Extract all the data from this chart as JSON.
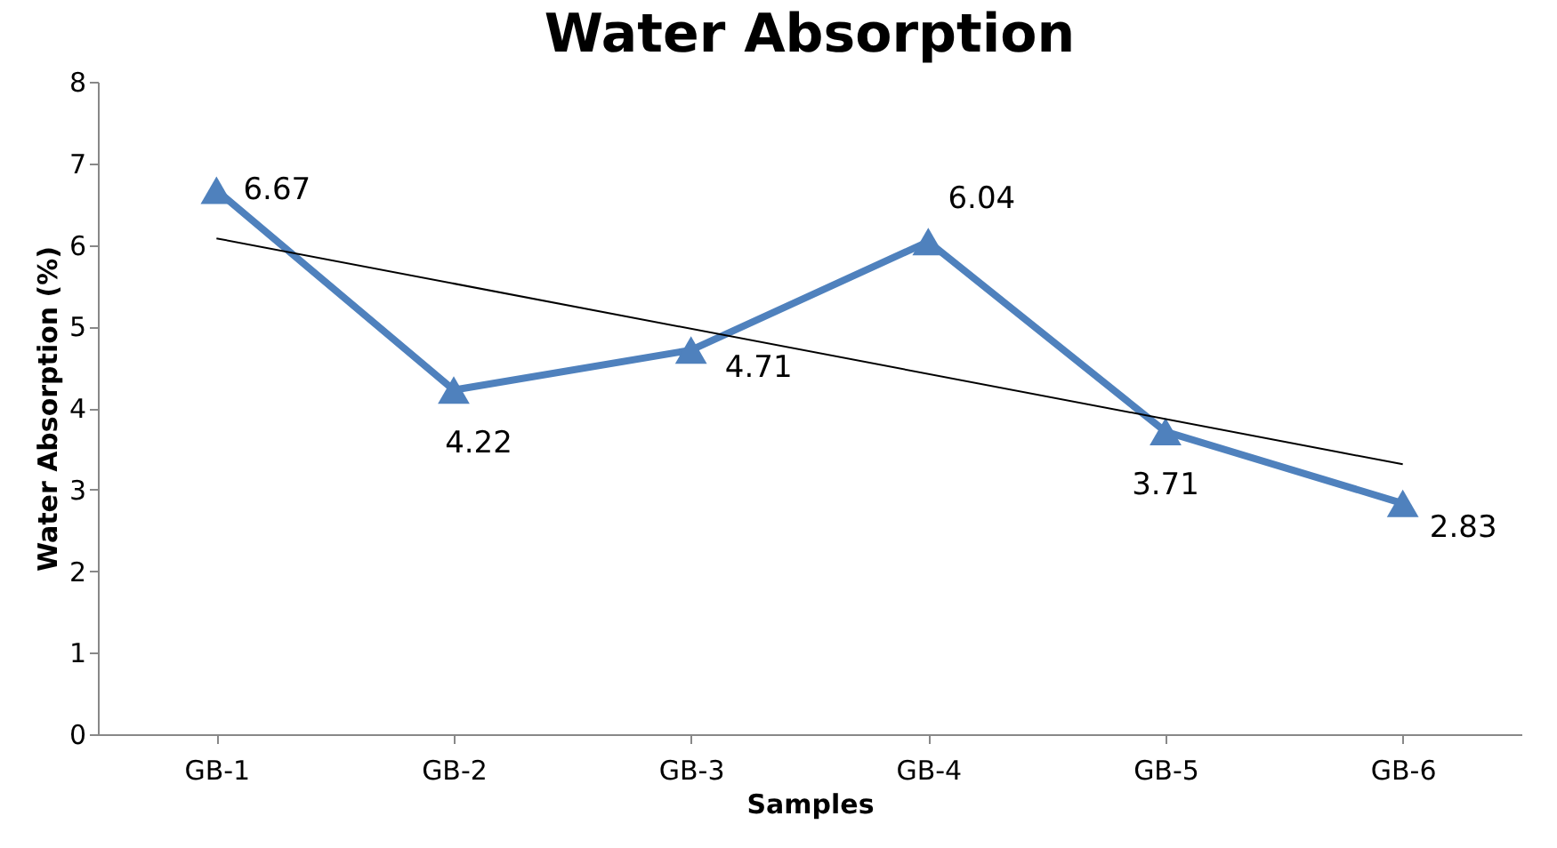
{
  "chart_data": {
    "type": "line",
    "title": "Water Absorption",
    "xlabel": "Samples",
    "ylabel": "Water Absorption (%)",
    "categories": [
      "GB-1",
      "GB-2",
      "GB-3",
      "GB-4",
      "GB-5",
      "GB-6"
    ],
    "series": [
      {
        "color": "#4f81bd",
        "values": [
          6.67,
          4.22,
          4.71,
          6.04,
          3.71,
          2.83
        ],
        "marker": "triangle",
        "data_labels": true
      },
      {
        "type": "line",
        "color": "#000000",
        "x": [
          "GB-1",
          "GB-6"
        ],
        "values": [
          6.08,
          3.31
        ],
        "marker": "none"
      }
    ],
    "ylim": [
      0,
      8
    ],
    "yticks": [
      0,
      1,
      2,
      3,
      4,
      5,
      6,
      7,
      8
    ],
    "grid": false
  }
}
